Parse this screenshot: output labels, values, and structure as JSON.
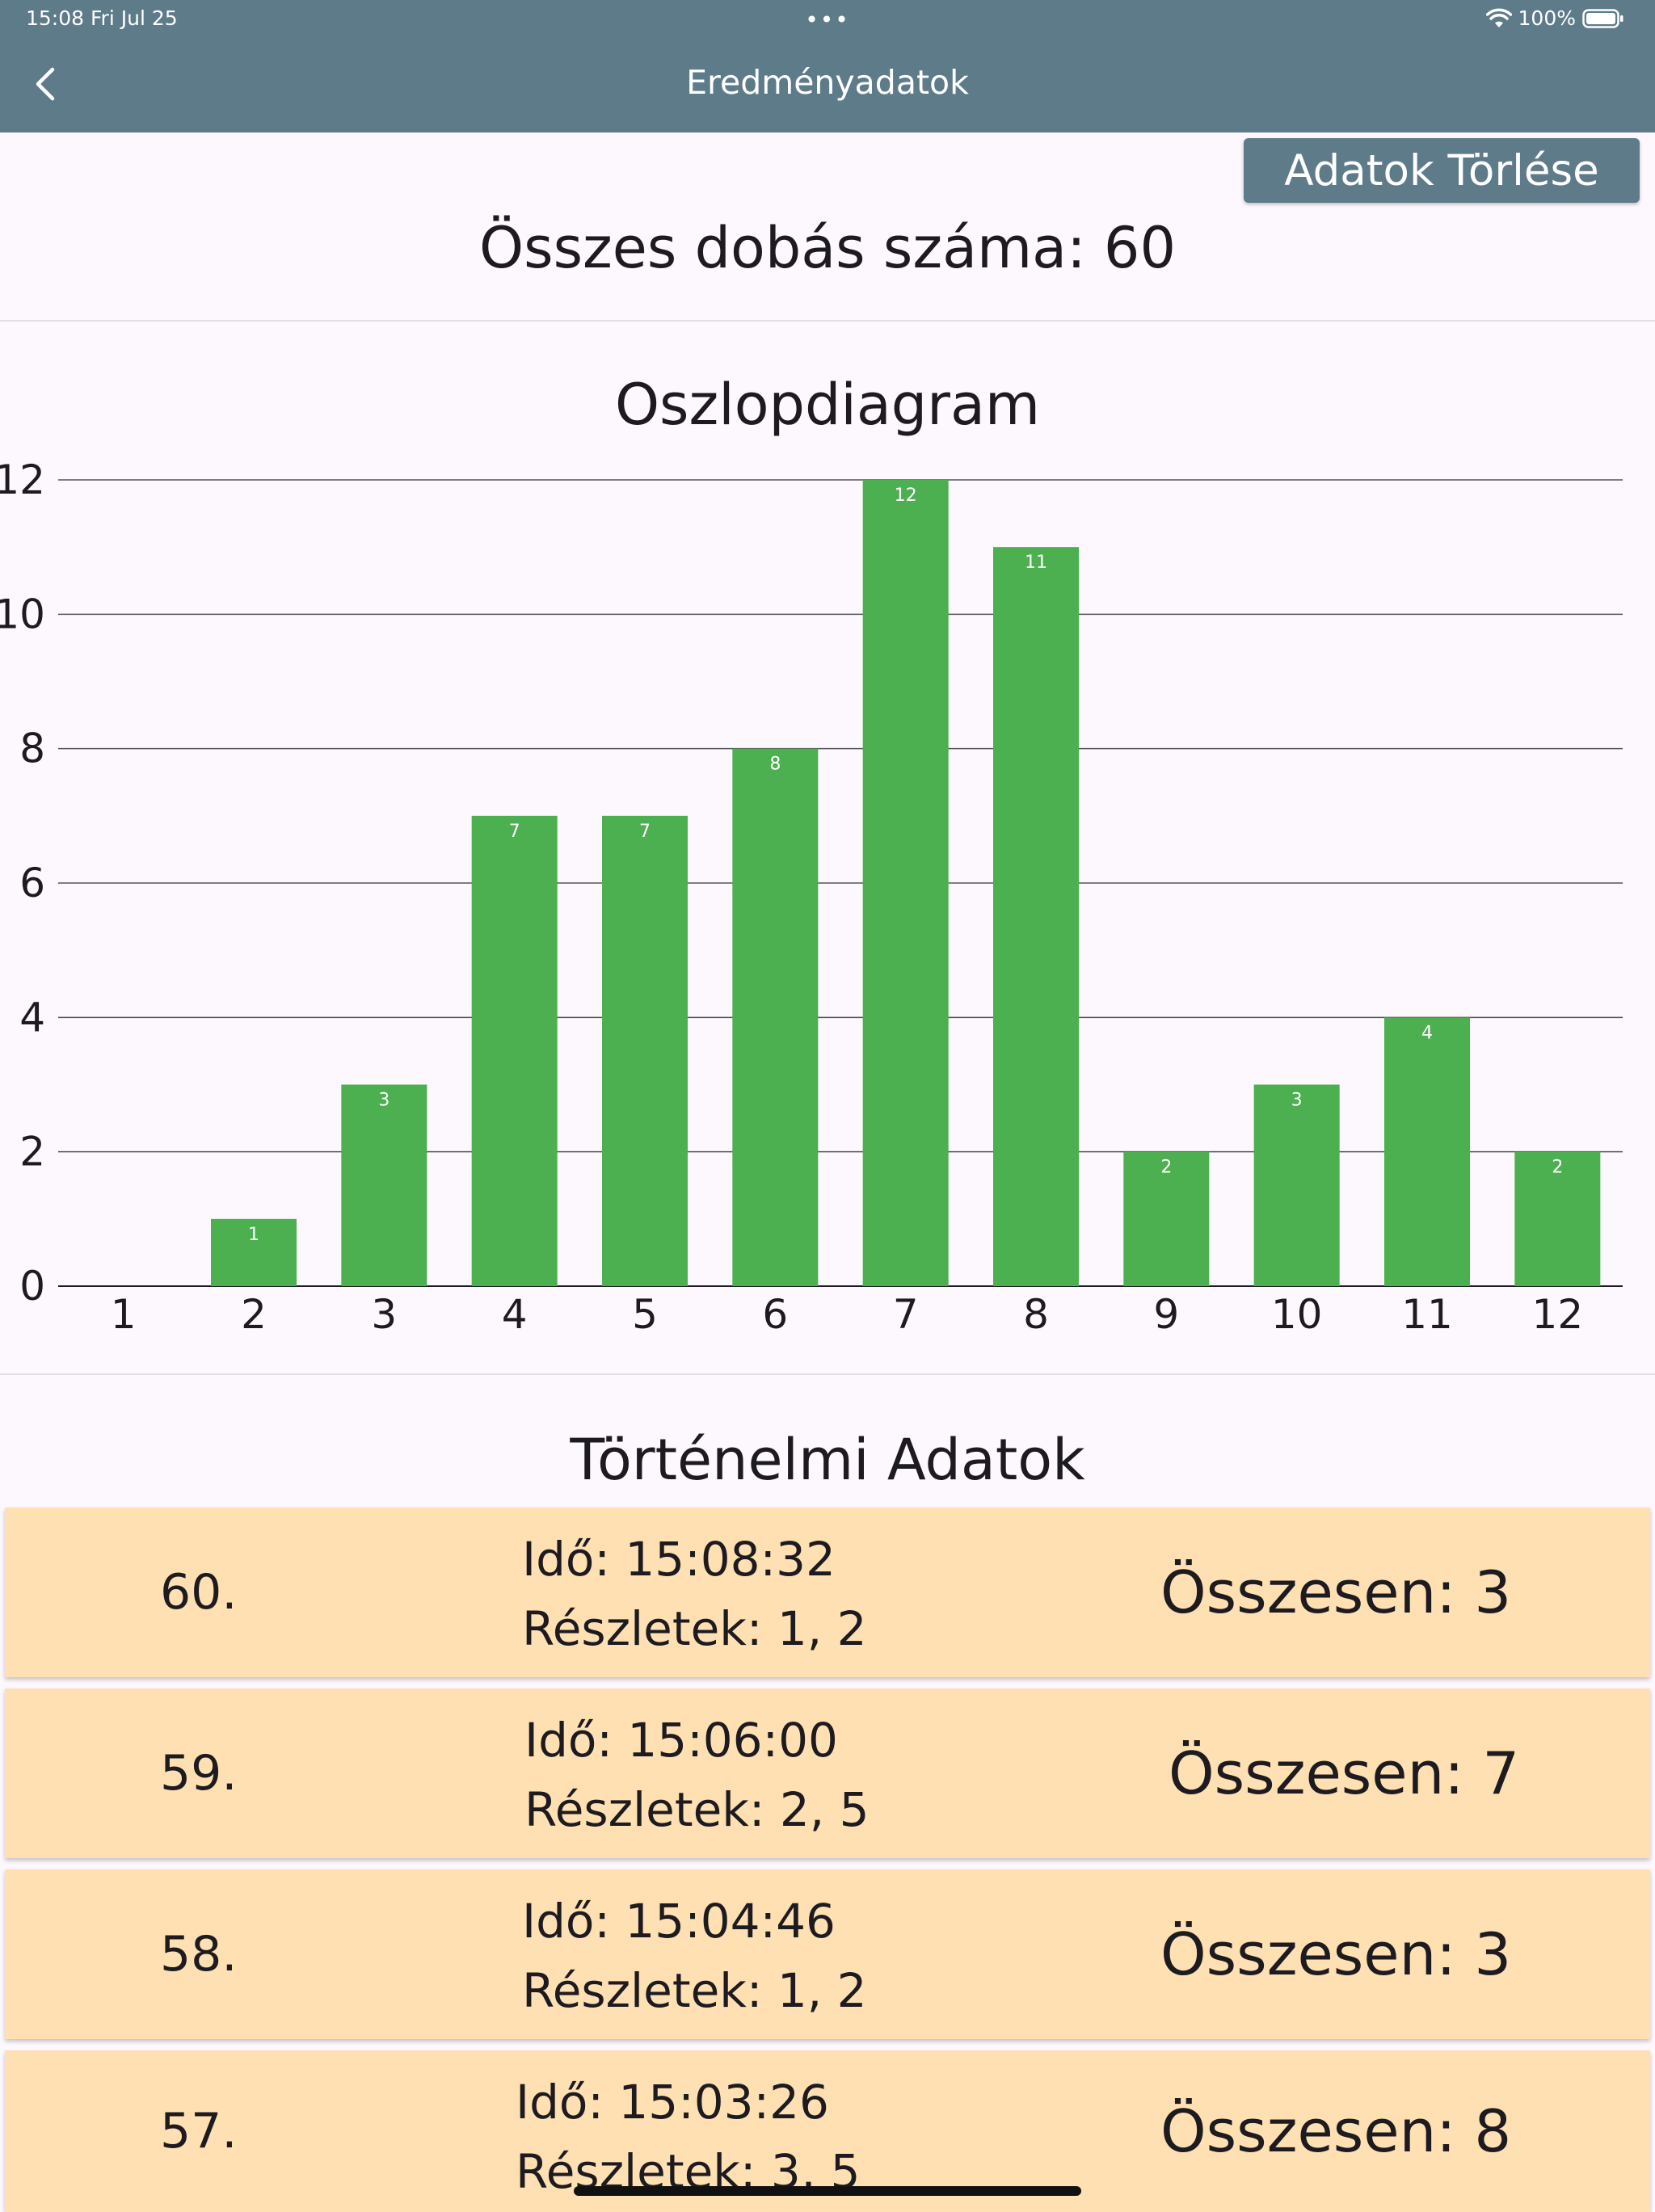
{
  "status_bar": {
    "time": "15:08  Fri Jul 25",
    "dots": "•••",
    "battery": "100%"
  },
  "header": {
    "title": "Eredményadatok"
  },
  "toolbar": {
    "clear_label": "Adatok Törlése"
  },
  "summary": {
    "total_label": "Összes dobás száma: 60"
  },
  "chart_data": {
    "type": "bar",
    "title": "Oszlopdiagram",
    "xlabel": "",
    "ylabel": "",
    "categories": [
      "1",
      "2",
      "3",
      "4",
      "5",
      "6",
      "7",
      "8",
      "9",
      "10",
      "11",
      "12"
    ],
    "values": [
      0,
      1,
      3,
      7,
      7,
      8,
      12,
      11,
      2,
      3,
      4,
      2
    ],
    "ylim": [
      0,
      12
    ],
    "yticks": [
      0,
      2,
      4,
      6,
      8,
      10,
      12
    ],
    "grid": true,
    "legend": "none",
    "bar_color": "#4caf50"
  },
  "history": {
    "title": "Történelmi Adatok",
    "entries": [
      {
        "index": "60.",
        "time": "Idő: 15:08:32",
        "details": "Részletek: 1, 2",
        "total": "Összesen: 3"
      },
      {
        "index": "59.",
        "time": "Idő: 15:06:00",
        "details": "Részletek: 2, 5",
        "total": "Összesen: 7"
      },
      {
        "index": "58.",
        "time": "Idő: 15:04:46",
        "details": "Részletek: 1, 2",
        "total": "Összesen: 3"
      },
      {
        "index": "57.",
        "time": "Idő: 15:03:26",
        "details": "Részletek: 3, 5",
        "total": "Összesen: 8"
      }
    ]
  },
  "colors": {
    "header": "#5e7b8a",
    "background": "#fdf8fd",
    "card": "#ffe0b3",
    "bar": "#4caf50"
  }
}
